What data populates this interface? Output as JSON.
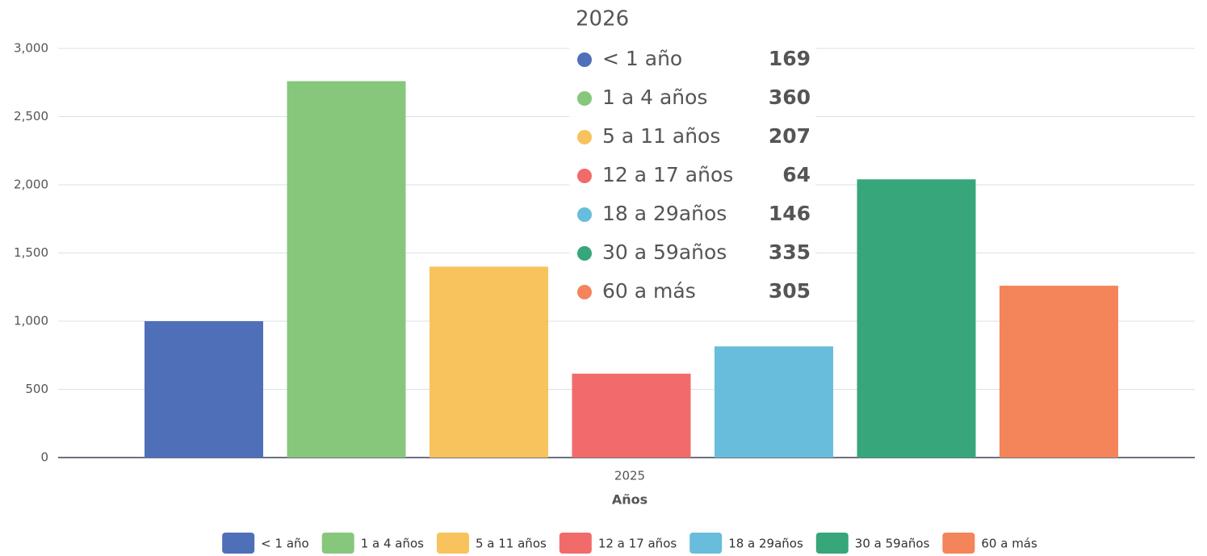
{
  "chart_data": {
    "type": "bar",
    "categories": [
      "2025"
    ],
    "x_label": "Años",
    "series": [
      {
        "name": "< 1 año",
        "color": "#4f6fb8",
        "values": [
          1000
        ]
      },
      {
        "name": "1 a 4 años",
        "color": "#86c77c",
        "values": [
          2760
        ]
      },
      {
        "name": "5 a 11 años",
        "color": "#f8c35c",
        "values": [
          1400
        ]
      },
      {
        "name": "12 a 17 años",
        "color": "#f26b6b",
        "values": [
          615
        ]
      },
      {
        "name": "18 a 29años",
        "color": "#67bddb",
        "values": [
          815
        ]
      },
      {
        "name": "30 a 59años",
        "color": "#37a67a",
        "values": [
          2040
        ]
      },
      {
        "name": "60 a más",
        "color": "#f4845a",
        "values": [
          1260
        ]
      }
    ],
    "ylim": [
      0,
      3000
    ],
    "yticks": [
      0,
      500,
      {
        "value": 1000,
        "label": "1,000"
      },
      {
        "value": 1500,
        "label": "1,500"
      },
      {
        "value": 2000,
        "label": "2,000"
      },
      {
        "value": 2500,
        "label": "2,500"
      },
      {
        "value": 3000,
        "label": "3,000"
      }
    ],
    "grid": true,
    "legend": "bottom"
  },
  "tooltip": {
    "title": "2026",
    "items": [
      {
        "name": "< 1 año",
        "color": "#4f6fb8",
        "value": 169
      },
      {
        "name": "1 a 4 años",
        "color": "#86c77c",
        "value": 360
      },
      {
        "name": "5 a 11 años",
        "color": "#f8c35c",
        "value": 207
      },
      {
        "name": "12 a 17 años",
        "color": "#f26b6b",
        "value": 64
      },
      {
        "name": "18 a 29años",
        "color": "#67bddb",
        "value": 146
      },
      {
        "name": "30 a 59años",
        "color": "#37a67a",
        "value": 335
      },
      {
        "name": "60 a más",
        "color": "#f4845a",
        "value": 305
      }
    ]
  }
}
